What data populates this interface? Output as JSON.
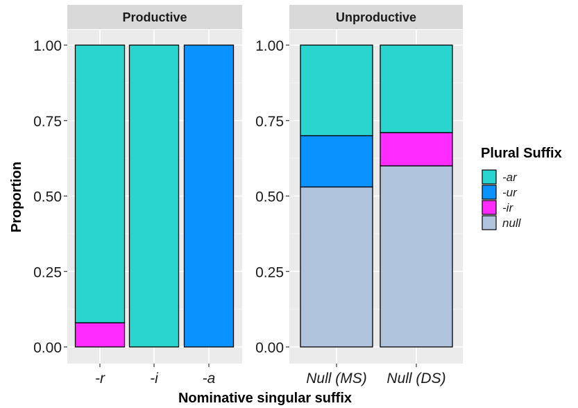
{
  "chart_data": {
    "type": "bar",
    "stacked": true,
    "xlabel": "Nominative singular suffix",
    "ylabel": "Proportion",
    "ylim": [
      0,
      1
    ],
    "yticks": [
      "0.00",
      "0.25",
      "0.50",
      "0.75",
      "1.00"
    ],
    "grid": true,
    "legend": {
      "title": "Plural Suffix",
      "position": "right",
      "items": [
        {
          "label": "-ar",
          "color": "#2ad4cf"
        },
        {
          "label": "-ur",
          "color": "#0a92ff"
        },
        {
          "label": "-ir",
          "color": "#ff2bff"
        },
        {
          "label": "null",
          "color": "#b0c4de"
        }
      ]
    },
    "panels": [
      {
        "title": "Productive",
        "categories": [
          "-r",
          "-i",
          "-a"
        ],
        "series": [
          {
            "name": "null",
            "values": [
              0,
              0,
              0
            ]
          },
          {
            "name": "-ir",
            "values": [
              0.08,
              0,
              0
            ]
          },
          {
            "name": "-ur",
            "values": [
              0,
              0,
              1.0
            ]
          },
          {
            "name": "-ar",
            "values": [
              0.92,
              1.0,
              0
            ]
          }
        ]
      },
      {
        "title": "Unproductive",
        "categories": [
          "Null (MS)",
          "Null (DS)"
        ],
        "series": [
          {
            "name": "null",
            "values": [
              0.53,
              0.6
            ]
          },
          {
            "name": "-ir",
            "values": [
              0,
              0.11
            ]
          },
          {
            "name": "-ur",
            "values": [
              0.17,
              0
            ]
          },
          {
            "name": "-ar",
            "values": [
              0.3,
              0.29
            ]
          }
        ]
      }
    ]
  }
}
